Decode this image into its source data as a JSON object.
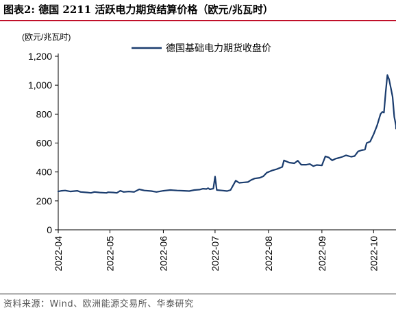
{
  "header": {
    "title": "图表2:  德国 2211 活跃电力期货结算价格（欧元/兆瓦时）"
  },
  "footer": {
    "source": "资料来源：Wind、欧洲能源交易所、华泰研究"
  },
  "chart_data": {
    "type": "line",
    "title": "",
    "xlabel": "",
    "ylabel": "(欧元/兆瓦时)",
    "ylim": [
      0,
      1200
    ],
    "yticks": [
      0,
      200,
      400,
      600,
      800,
      1000,
      1200
    ],
    "ytick_labels": [
      "0",
      "200",
      "400",
      "600",
      "800",
      "1,000",
      "1,200"
    ],
    "xlim": [
      "2022-04-01",
      "2022-10-14"
    ],
    "xticks": [
      "2022-04-01",
      "2022-05-01",
      "2022-06-01",
      "2022-07-01",
      "2022-08-01",
      "2022-09-01",
      "2022-10-01"
    ],
    "xtick_labels": [
      "2022-04",
      "2022-05",
      "2022-06",
      "2022-07",
      "2022-08",
      "2022-09",
      "2022-10"
    ],
    "grid": false,
    "legend": "top-center",
    "series": [
      {
        "name": "德国基础电力期货收盘价",
        "color": "#1a3c6e",
        "points": [
          [
            "2022-04-01",
            265
          ],
          [
            "2022-04-03",
            270
          ],
          [
            "2022-04-05",
            272
          ],
          [
            "2022-04-08",
            265
          ],
          [
            "2022-04-12",
            270
          ],
          [
            "2022-04-14",
            262
          ],
          [
            "2022-04-18",
            258
          ],
          [
            "2022-04-20",
            255
          ],
          [
            "2022-04-22",
            262
          ],
          [
            "2022-04-25",
            258
          ],
          [
            "2022-04-29",
            255
          ],
          [
            "2022-04-30",
            260
          ],
          [
            "2022-05-03",
            258
          ],
          [
            "2022-05-05",
            255
          ],
          [
            "2022-05-07",
            270
          ],
          [
            "2022-05-09",
            262
          ],
          [
            "2022-05-12",
            265
          ],
          [
            "2022-05-15",
            262
          ],
          [
            "2022-05-18",
            280
          ],
          [
            "2022-05-21",
            272
          ],
          [
            "2022-05-25",
            268
          ],
          [
            "2022-05-28",
            262
          ],
          [
            "2022-06-01",
            270
          ],
          [
            "2022-06-05",
            275
          ],
          [
            "2022-06-09",
            272
          ],
          [
            "2022-06-13",
            270
          ],
          [
            "2022-06-16",
            268
          ],
          [
            "2022-06-19",
            275
          ],
          [
            "2022-06-22",
            278
          ],
          [
            "2022-06-24",
            284
          ],
          [
            "2022-06-26",
            282
          ],
          [
            "2022-06-27",
            288
          ],
          [
            "2022-06-28",
            280
          ],
          [
            "2022-06-30",
            285
          ],
          [
            "2022-07-01",
            368
          ],
          [
            "2022-07-02",
            275
          ],
          [
            "2022-07-05",
            272
          ],
          [
            "2022-07-08",
            268
          ],
          [
            "2022-07-10",
            275
          ],
          [
            "2022-07-13",
            340
          ],
          [
            "2022-07-15",
            325
          ],
          [
            "2022-07-18",
            328
          ],
          [
            "2022-07-20",
            330
          ],
          [
            "2022-07-22",
            345
          ],
          [
            "2022-07-24",
            355
          ],
          [
            "2022-07-27",
            360
          ],
          [
            "2022-07-29",
            370
          ],
          [
            "2022-07-31",
            395
          ],
          [
            "2022-08-03",
            410
          ],
          [
            "2022-08-06",
            420
          ],
          [
            "2022-08-09",
            435
          ],
          [
            "2022-08-10",
            480
          ],
          [
            "2022-08-13",
            465
          ],
          [
            "2022-08-16",
            460
          ],
          [
            "2022-08-18",
            478
          ],
          [
            "2022-08-20",
            450
          ],
          [
            "2022-08-23",
            450
          ],
          [
            "2022-08-25",
            455
          ],
          [
            "2022-08-27",
            440
          ],
          [
            "2022-08-29",
            448
          ],
          [
            "2022-09-01",
            445
          ],
          [
            "2022-09-03",
            508
          ],
          [
            "2022-09-05",
            500
          ],
          [
            "2022-09-07",
            480
          ],
          [
            "2022-09-09",
            492
          ],
          [
            "2022-09-11",
            498
          ],
          [
            "2022-09-13",
            505
          ],
          [
            "2022-09-15",
            515
          ],
          [
            "2022-09-18",
            505
          ],
          [
            "2022-09-20",
            510
          ],
          [
            "2022-09-22",
            542
          ],
          [
            "2022-09-24",
            550
          ],
          [
            "2022-09-26",
            555
          ],
          [
            "2022-09-27",
            600
          ],
          [
            "2022-09-29",
            610
          ],
          [
            "2022-10-01",
            660
          ],
          [
            "2022-10-03",
            720
          ],
          [
            "2022-10-05",
            800
          ],
          [
            "2022-10-06",
            815
          ],
          [
            "2022-10-07",
            810
          ],
          [
            "2022-10-08",
            950
          ],
          [
            "2022-10-09",
            1070
          ],
          [
            "2022-10-10",
            1040
          ],
          [
            "2022-10-11",
            980
          ],
          [
            "2022-10-12",
            920
          ],
          [
            "2022-10-13",
            780
          ],
          [
            "2022-10-14",
            720
          ],
          [
            "2022-10-14",
            700
          ]
        ]
      }
    ]
  }
}
